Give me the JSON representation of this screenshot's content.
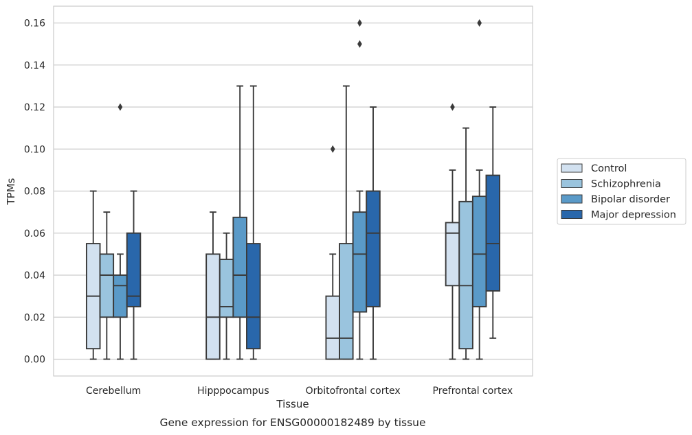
{
  "chart_data": {
    "type": "box",
    "caption": "Gene expression for ENSG00000182489 by tissue",
    "xlabel": "Tissue",
    "ylabel": "TPMs",
    "ylim": [
      -0.008,
      0.168
    ],
    "yticks": [
      0.0,
      0.02,
      0.04,
      0.06,
      0.08,
      0.1,
      0.12,
      0.14,
      0.16
    ],
    "ytick_labels": [
      "0.00",
      "0.02",
      "0.04",
      "0.06",
      "0.08",
      "0.10",
      "0.12",
      "0.14",
      "0.16"
    ],
    "grid": "horizontal",
    "legend_position": "right",
    "categories": [
      "Cerebellum",
      "Hipppocampus",
      "Orbitofrontal cortex",
      "Prefrontal cortex"
    ],
    "series": [
      {
        "name": "Control",
        "color": "#d2e1f0",
        "boxes": [
          {
            "whislo": 0.0,
            "q1": 0.005,
            "med": 0.03,
            "q3": 0.055,
            "whishi": 0.08,
            "fliers": []
          },
          {
            "whislo": 0.0,
            "q1": 0.0,
            "med": 0.02,
            "q3": 0.05,
            "whishi": 0.07,
            "fliers": []
          },
          {
            "whislo": 0.0,
            "q1": 0.0,
            "med": 0.01,
            "q3": 0.03,
            "whishi": 0.05,
            "fliers": [
              0.1
            ]
          },
          {
            "whislo": 0.0,
            "q1": 0.035,
            "med": 0.06,
            "q3": 0.065,
            "whishi": 0.09,
            "fliers": [
              0.12
            ]
          }
        ]
      },
      {
        "name": "Schizophrenia",
        "color": "#9ac4de",
        "boxes": [
          {
            "whislo": 0.0,
            "q1": 0.02,
            "med": 0.04,
            "q3": 0.05,
            "whishi": 0.07,
            "fliers": []
          },
          {
            "whislo": 0.0,
            "q1": 0.02,
            "med": 0.025,
            "q3": 0.0475,
            "whishi": 0.06,
            "fliers": []
          },
          {
            "whislo": 0.0,
            "q1": 0.0,
            "med": 0.01,
            "q3": 0.055,
            "whishi": 0.13,
            "fliers": []
          },
          {
            "whislo": 0.0,
            "q1": 0.005,
            "med": 0.035,
            "q3": 0.075,
            "whishi": 0.11,
            "fliers": []
          }
        ]
      },
      {
        "name": "Bipolar disorder",
        "color": "#5a9ac8",
        "boxes": [
          {
            "whislo": 0.0,
            "q1": 0.02,
            "med": 0.035,
            "q3": 0.04,
            "whishi": 0.05,
            "fliers": [
              0.12
            ]
          },
          {
            "whislo": 0.0,
            "q1": 0.02,
            "med": 0.04,
            "q3": 0.0675,
            "whishi": 0.13,
            "fliers": []
          },
          {
            "whislo": 0.0,
            "q1": 0.0225,
            "med": 0.05,
            "q3": 0.07,
            "whishi": 0.08,
            "fliers": [
              0.15,
              0.16
            ]
          },
          {
            "whislo": 0.0,
            "q1": 0.025,
            "med": 0.05,
            "q3": 0.0775,
            "whishi": 0.09,
            "fliers": [
              0.16
            ]
          }
        ]
      },
      {
        "name": "Major depression",
        "color": "#2967ab",
        "boxes": [
          {
            "whislo": 0.0,
            "q1": 0.025,
            "med": 0.03,
            "q3": 0.06,
            "whishi": 0.08,
            "fliers": []
          },
          {
            "whislo": 0.0,
            "q1": 0.005,
            "med": 0.02,
            "q3": 0.055,
            "whishi": 0.13,
            "fliers": []
          },
          {
            "whislo": 0.0,
            "q1": 0.025,
            "med": 0.06,
            "q3": 0.08,
            "whishi": 0.12,
            "fliers": []
          },
          {
            "whislo": 0.01,
            "q1": 0.0325,
            "med": 0.055,
            "q3": 0.0875,
            "whishi": 0.12,
            "fliers": []
          }
        ]
      }
    ]
  }
}
